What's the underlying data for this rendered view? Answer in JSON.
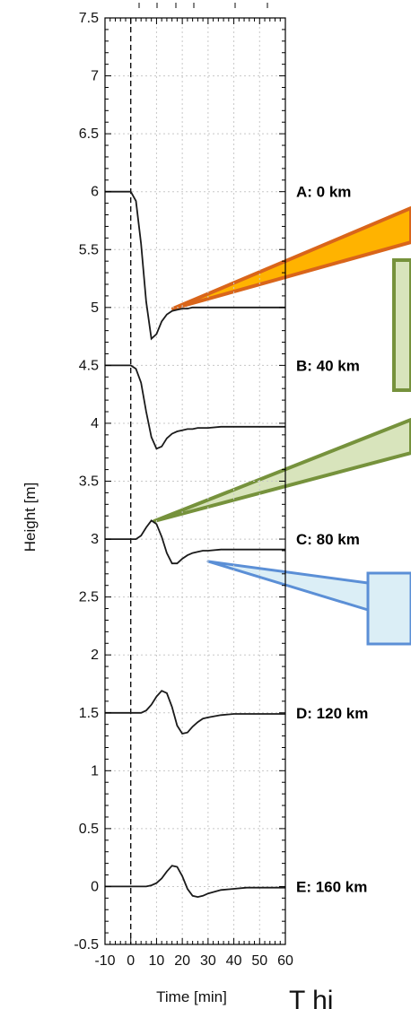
{
  "chart_data": {
    "type": "line",
    "title": "",
    "xlabel": "Time [min]",
    "ylabel": "Height [m]",
    "xlim": [
      -10,
      60
    ],
    "ylim": [
      -0.5,
      7.5
    ],
    "x_ticks": [
      -10,
      0,
      10,
      20,
      30,
      40,
      50,
      60
    ],
    "y_ticks": [
      -0.5,
      0,
      0.5,
      1,
      1.5,
      2,
      2.5,
      3,
      3.5,
      4,
      4.5,
      5,
      5.5,
      6,
      6.5,
      7,
      7.5
    ],
    "grid": true,
    "reference_line_x": 0,
    "series": [
      {
        "name": "A: 0 km",
        "x": [
          -10,
          0,
          2,
          4,
          6,
          8,
          10,
          12,
          14,
          16,
          18,
          20,
          22,
          24,
          26,
          28,
          30,
          35,
          40,
          45,
          50,
          55,
          60
        ],
        "y": [
          6.0,
          6.0,
          5.92,
          5.55,
          5.05,
          4.73,
          4.77,
          4.88,
          4.94,
          4.97,
          4.98,
          4.99,
          4.99,
          5.0,
          5.0,
          5.0,
          5.0,
          5.0,
          5.0,
          5.0,
          5.0,
          5.0,
          5.0
        ]
      },
      {
        "name": "B: 40 km",
        "x": [
          -10,
          0,
          2,
          4,
          6,
          8,
          10,
          12,
          14,
          16,
          18,
          20,
          22,
          24,
          26,
          28,
          30,
          35,
          40,
          45,
          50,
          55,
          60
        ],
        "y": [
          4.5,
          4.5,
          4.47,
          4.35,
          4.1,
          3.88,
          3.78,
          3.8,
          3.87,
          3.91,
          3.93,
          3.94,
          3.95,
          3.95,
          3.96,
          3.96,
          3.96,
          3.97,
          3.97,
          3.97,
          3.97,
          3.97,
          3.97
        ]
      },
      {
        "name": "C: 80 km",
        "x": [
          -10,
          0,
          2,
          4,
          6,
          8,
          10,
          12,
          14,
          16,
          18,
          20,
          22,
          24,
          26,
          28,
          30,
          35,
          40,
          45,
          50,
          55,
          60
        ],
        "y": [
          3.0,
          3.0,
          3.0,
          3.03,
          3.1,
          3.16,
          3.13,
          3.02,
          2.88,
          2.79,
          2.79,
          2.83,
          2.86,
          2.88,
          2.89,
          2.9,
          2.9,
          2.91,
          2.91,
          2.91,
          2.91,
          2.91,
          2.91
        ]
      },
      {
        "name": "D: 120 km",
        "x": [
          -10,
          0,
          2,
          4,
          6,
          8,
          10,
          12,
          14,
          16,
          18,
          20,
          22,
          24,
          26,
          28,
          30,
          35,
          40,
          45,
          50,
          55,
          60
        ],
        "y": [
          1.5,
          1.5,
          1.5,
          1.5,
          1.52,
          1.57,
          1.64,
          1.69,
          1.67,
          1.55,
          1.39,
          1.32,
          1.33,
          1.38,
          1.42,
          1.45,
          1.46,
          1.48,
          1.49,
          1.49,
          1.49,
          1.49,
          1.49
        ]
      },
      {
        "name": "E: 160 km",
        "x": [
          -10,
          0,
          2,
          4,
          6,
          8,
          10,
          12,
          14,
          16,
          18,
          20,
          22,
          24,
          26,
          28,
          30,
          35,
          40,
          45,
          50,
          55,
          60
        ],
        "y": [
          0.0,
          0.0,
          0.0,
          0.0,
          0.0,
          0.01,
          0.03,
          0.07,
          0.13,
          0.18,
          0.17,
          0.09,
          -0.02,
          -0.08,
          -0.09,
          -0.08,
          -0.06,
          -0.03,
          -0.02,
          -0.01,
          -0.01,
          -0.01,
          -0.01
        ]
      }
    ]
  },
  "station_labels": [
    "A: 0 km",
    "B: 40 km",
    "C: 80 km",
    "D: 120 km",
    "E: 160 km"
  ],
  "clipped_text": "T   hi",
  "colors": {
    "line": "#1a1a1a",
    "grid": "#c8c8c8",
    "orange_fill": "#ffb300",
    "orange_stroke": "#d9651a",
    "green_fill": "#d8e4bc",
    "green_stroke": "#76923c",
    "blue_fill": "#dbeef6",
    "blue_stroke": "#5b8fd6"
  }
}
